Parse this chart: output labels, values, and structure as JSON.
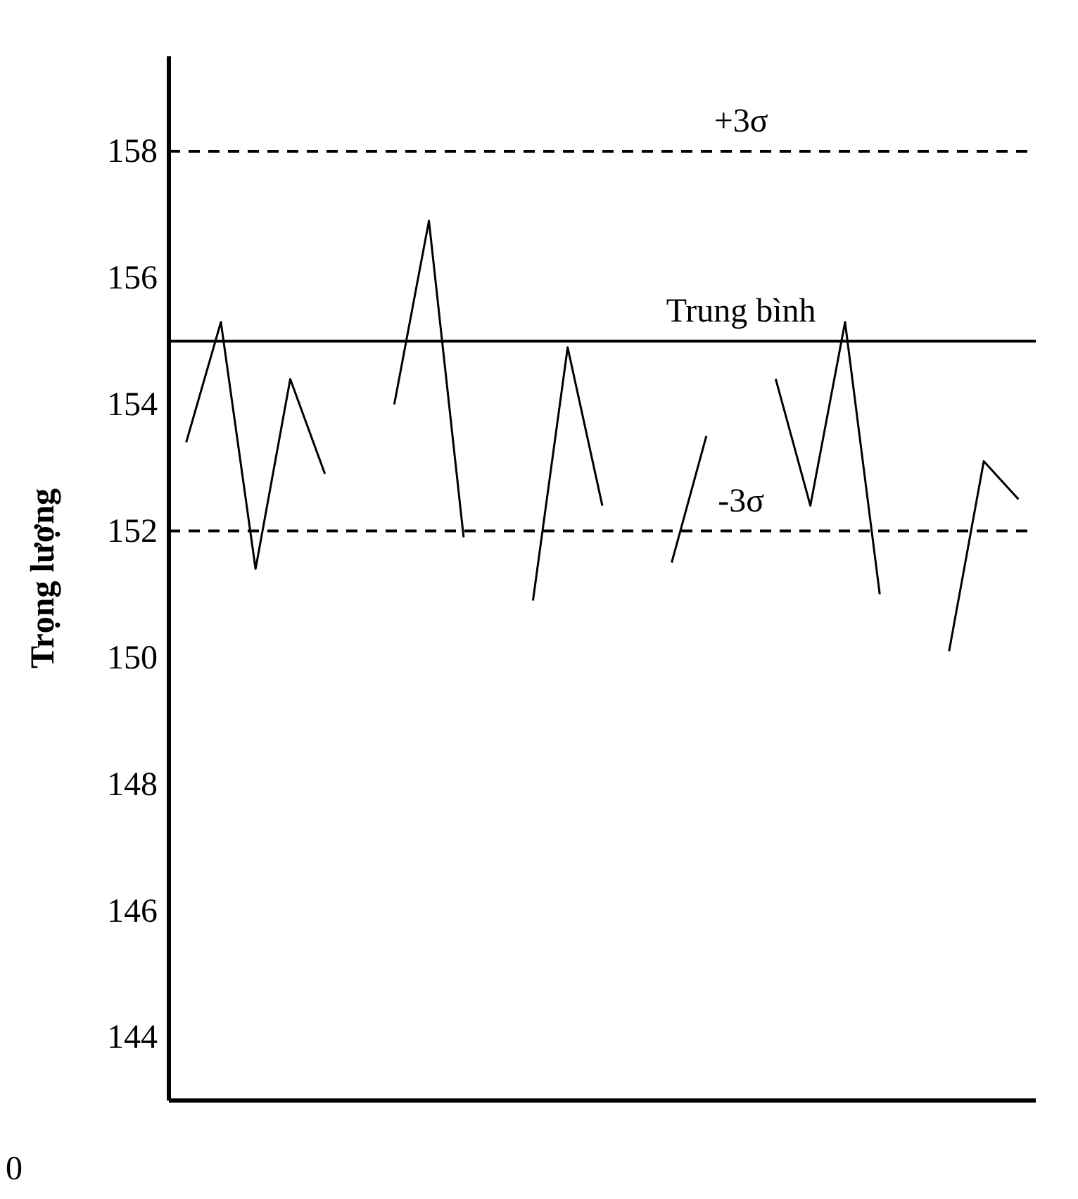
{
  "chart_data": {
    "type": "line",
    "ylabel": "Trọng lượng",
    "categories": [
      null,
      null,
      null,
      null,
      null,
      null,
      null,
      null,
      null,
      null,
      null,
      null,
      null,
      null,
      null,
      null,
      null,
      null,
      null,
      null,
      null,
      null,
      null,
      null,
      null
    ],
    "series": [
      {
        "color": "#000000",
        "values": [
          153.4,
          155.3,
          151.4,
          154.4,
          152.9,
          null,
          null,
          null,
          null,
          null,
          null,
          null,
          null,
          null,
          null,
          null,
          null,
          null,
          null,
          null,
          null,
          null,
          null,
          null,
          null
        ]
      },
      {
        "color": "#000000",
        "values": [
          null,
          null,
          null,
          null,
          null,
          null,
          154,
          156.9,
          151.9,
          null,
          null,
          null,
          null,
          null,
          null,
          null,
          null,
          null,
          null,
          null,
          null,
          null,
          null,
          null,
          null
        ]
      },
      {
        "color": "#000000",
        "values": [
          null,
          null,
          null,
          null,
          null,
          null,
          null,
          null,
          null,
          null,
          150.9,
          154.9,
          152.4,
          null,
          null,
          null,
          null,
          null,
          null,
          null,
          null,
          null,
          null,
          null,
          null
        ]
      },
      {
        "color": "#000000",
        "values": [
          null,
          null,
          null,
          null,
          null,
          null,
          null,
          null,
          null,
          null,
          null,
          null,
          null,
          null,
          151.5,
          153.5,
          null,
          null,
          null,
          null,
          null,
          null,
          null,
          null,
          null
        ]
      },
      {
        "color": "#000000",
        "values": [
          null,
          null,
          null,
          null,
          null,
          null,
          null,
          null,
          null,
          null,
          null,
          null,
          null,
          null,
          null,
          null,
          null,
          154.4,
          152.4,
          155.3,
          151,
          null,
          null,
          null,
          null
        ]
      },
      {
        "color": "#000000",
        "values": [
          null,
          null,
          null,
          null,
          null,
          null,
          null,
          null,
          null,
          null,
          null,
          null,
          null,
          null,
          null,
          null,
          null,
          null,
          null,
          null,
          null,
          null,
          150.1,
          153.1,
          152.5
        ]
      }
    ],
    "ylim": [
      143,
      159.5
    ],
    "yticks": [
      144,
      146,
      148,
      150,
      152,
      154,
      156,
      158
    ],
    "tick_labels": "y",
    "grid": false,
    "legend": false,
    "marker": "none",
    "line_style": "solid",
    "ref_lines": [
      {
        "axis": "y",
        "value": 158,
        "label": "+3σ",
        "line_style": "dashed",
        "color": "#000000"
      },
      {
        "axis": "y",
        "value": 155,
        "label": "Trung bình",
        "line_style": "solid",
        "color": "#000000"
      },
      {
        "axis": "y",
        "value": 152,
        "label": "-3σ",
        "line_style": "dashed",
        "color": "#000000"
      }
    ],
    "annotations": [
      "0"
    ]
  }
}
